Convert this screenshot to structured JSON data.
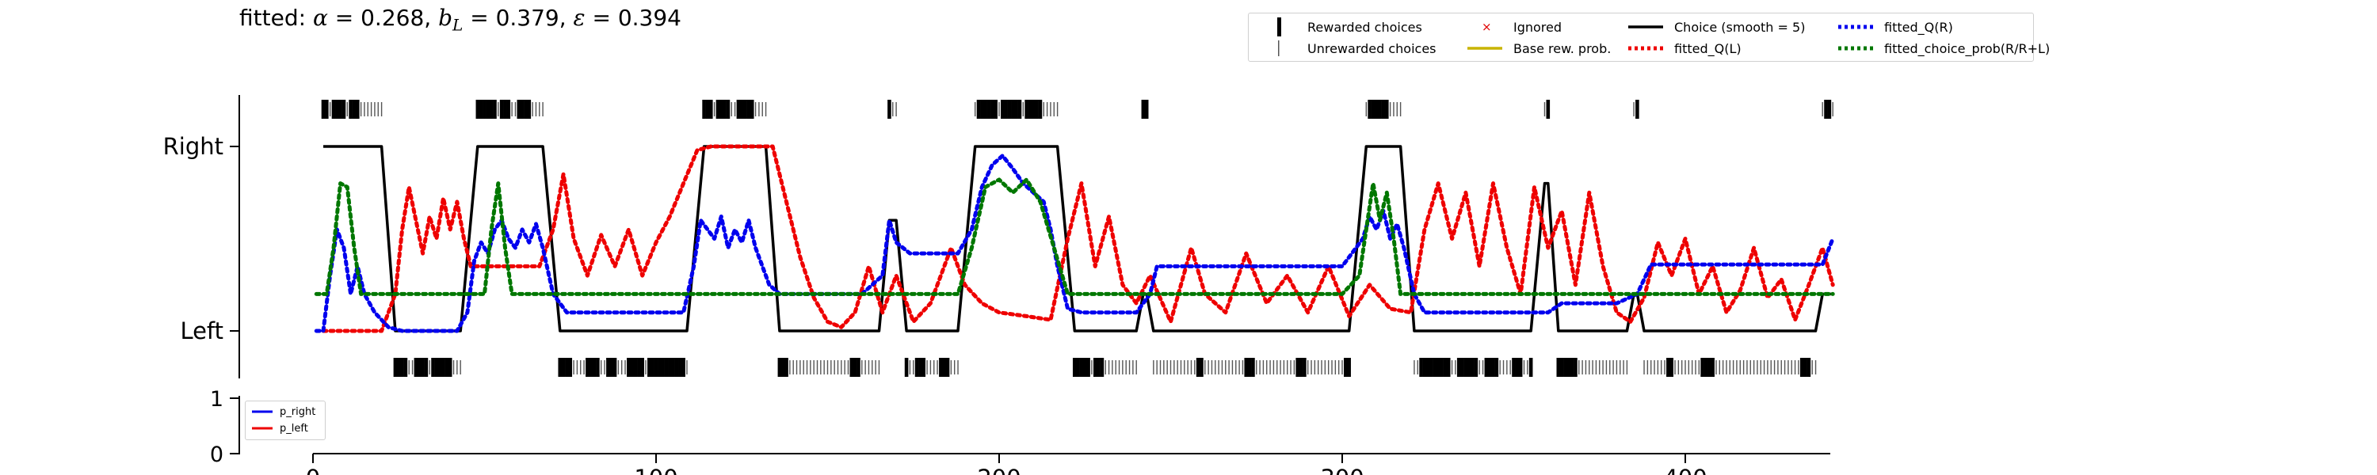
{
  "title": {
    "prefix": "fitted: ",
    "alpha_sym": "α",
    "alpha_text": " = 0.268, ",
    "b_sym": "b",
    "b_sub": "L",
    "b_text": " = 0.379, ",
    "eps_sym": "ε",
    "eps_text": " = 0.394"
  },
  "legend": [
    {
      "key": "rewarded",
      "label": "Rewarded choices",
      "kind": "bar-thick",
      "color": "#000000"
    },
    {
      "key": "ignored",
      "label": "Ignored",
      "kind": "x",
      "color": "#e00000"
    },
    {
      "key": "choice_smooth",
      "label": "Choice (smooth = 5)",
      "kind": "solid",
      "color": "#000000"
    },
    {
      "key": "fitted_qr",
      "label": "fitted_Q(R)",
      "kind": "dotted",
      "color": "#0000ee"
    },
    {
      "key": "unrewarded",
      "label": "Unrewarded choices",
      "kind": "bar-thin",
      "color": "#555555"
    },
    {
      "key": "base_rew",
      "label": "Base rew. prob.",
      "kind": "solid",
      "color": "#c8b400"
    },
    {
      "key": "fitted_ql",
      "label": "fitted_Q(L)",
      "kind": "dotted",
      "color": "#ee0000"
    },
    {
      "key": "fitted_prob",
      "label": "fitted_choice_prob(R/R+L)",
      "kind": "dotted",
      "color": "#007700"
    }
  ],
  "legend_prob": [
    {
      "key": "p_right",
      "label": "p_right",
      "color": "#0000ee"
    },
    {
      "key": "p_left",
      "label": "p_left",
      "color": "#ee0000"
    }
  ],
  "colors": {
    "qr": "#0000ee",
    "ql": "#ee0000",
    "prob": "#007700",
    "choice": "#000000",
    "p_right": "#0000ee",
    "p_left": "#ee0000",
    "axis": "#000000"
  },
  "chart_data": {
    "type": "line",
    "title": "fitted: α = 0.268, b_L = 0.379, ε = 0.394",
    "xlim": [
      0,
      443
    ],
    "x_ticks": [
      "0",
      "100",
      "200",
      "300",
      "400"
    ],
    "x_tick_values": [
      0,
      100,
      200,
      300,
      400
    ],
    "y_ticks": [
      "Left",
      "Right"
    ],
    "prob_ylim": [
      0,
      1
    ],
    "prob_y_ticks": [
      "0",
      "1"
    ],
    "choice_blocks": [
      {
        "side": "Right",
        "start": 3,
        "end": 20
      },
      {
        "side": "Left",
        "start": 24,
        "end": 43
      },
      {
        "side": "Right",
        "start": 48,
        "end": 67
      },
      {
        "side": "Left",
        "start": 72,
        "end": 109
      },
      {
        "side": "Right",
        "start": 114,
        "end": 132
      },
      {
        "side": "Left",
        "start": 136,
        "end": 165
      },
      {
        "side": "Right",
        "start": 168,
        "end": 170
      },
      {
        "side": "Left",
        "start": 173,
        "end": 188
      },
      {
        "side": "Right",
        "start": 193,
        "end": 217
      },
      {
        "side": "Left",
        "start": 222,
        "end": 240
      },
      {
        "side": "Right",
        "start": 242,
        "end": 243
      },
      {
        "side": "Left",
        "start": 245,
        "end": 302
      },
      {
        "side": "Right",
        "start": 307,
        "end": 317
      },
      {
        "side": "Left",
        "start": 321,
        "end": 355
      },
      {
        "side": "Right",
        "start": 359,
        "end": 360
      },
      {
        "side": "Left",
        "start": 363,
        "end": 383
      },
      {
        "side": "Right",
        "start": 385,
        "end": 386
      },
      {
        "side": "Left",
        "start": 388,
        "end": 438
      },
      {
        "side": "Right",
        "start": 440,
        "end": 443
      }
    ],
    "rewarded_right_segments": [
      [
        2,
        4
      ],
      [
        6,
        9
      ],
      [
        11,
        13
      ],
      [
        46,
        53
      ],
      [
        55,
        57
      ],
      [
        60,
        63
      ],
      [
        112,
        116
      ],
      [
        118,
        121
      ],
      [
        124,
        128
      ],
      [
        167,
        168
      ],
      [
        190,
        192
      ],
      [
        194,
        199
      ],
      [
        201,
        206
      ],
      [
        208,
        212
      ],
      [
        242,
        243
      ],
      [
        308,
        313
      ],
      [
        360,
        361
      ],
      [
        386,
        387
      ],
      [
        441,
        442
      ]
    ],
    "rewarded_left_segments": [
      [
        22,
        27
      ],
      [
        30,
        33
      ],
      [
        35,
        40
      ],
      [
        70,
        75
      ],
      [
        80,
        83
      ],
      [
        86,
        88
      ],
      [
        92,
        96
      ],
      [
        98,
        108
      ],
      [
        134,
        138
      ],
      [
        157,
        159
      ],
      [
        172,
        173
      ],
      [
        176,
        178
      ],
      [
        183,
        185
      ],
      [
        220,
        226
      ],
      [
        228,
        230
      ],
      [
        258,
        259
      ],
      [
        272,
        274
      ],
      [
        287,
        289
      ],
      [
        301,
        302
      ],
      [
        323,
        331
      ],
      [
        334,
        339
      ],
      [
        342,
        345
      ],
      [
        350,
        352
      ],
      [
        355,
        357
      ],
      [
        363,
        368
      ],
      [
        395,
        396
      ],
      [
        405,
        408
      ],
      [
        434,
        436
      ],
      [
        440,
        441
      ]
    ],
    "series": [
      {
        "name": "Choice (smooth = 5)",
        "key": "choice",
        "x": [
          3,
          20,
          24,
          43,
          48,
          67,
          72,
          109,
          114,
          132,
          136,
          165,
          168,
          170,
          173,
          188,
          193,
          217,
          222,
          240,
          242,
          243,
          245,
          302,
          307,
          317,
          321,
          355,
          359,
          360,
          363,
          383,
          385,
          386,
          388,
          438,
          440,
          443
        ],
        "y": [
          1,
          1,
          0,
          0,
          1,
          1,
          0,
          0,
          1,
          1,
          0,
          0,
          0.6,
          0.6,
          0,
          0,
          1,
          1,
          0,
          0,
          0.2,
          0.2,
          0,
          0,
          1,
          1,
          0,
          0,
          0.8,
          0.8,
          0,
          0,
          0.2,
          0.2,
          0,
          0,
          0.2,
          0.2
        ]
      },
      {
        "name": "fitted_Q(L)",
        "key": "ql",
        "x": [
          3,
          8,
          15,
          20,
          24,
          26,
          28,
          30,
          32,
          34,
          36,
          38,
          40,
          42,
          44,
          46,
          48,
          55,
          60,
          66,
          70,
          73,
          76,
          80,
          84,
          88,
          92,
          96,
          100,
          104,
          108,
          112,
          116,
          122,
          128,
          134,
          138,
          142,
          146,
          150,
          154,
          158,
          162,
          166,
          170,
          175,
          180,
          186,
          190,
          195,
          200,
          208,
          215,
          220,
          224,
          228,
          232,
          236,
          240,
          244,
          250,
          256,
          260,
          266,
          272,
          278,
          284,
          290,
          296,
          302,
          308,
          314,
          320,
          324,
          328,
          332,
          336,
          340,
          344,
          348,
          352,
          356,
          360,
          364,
          368,
          372,
          376,
          380,
          384,
          388,
          392,
          396,
          400,
          404,
          408,
          412,
          416,
          420,
          424,
          428,
          432,
          436,
          440,
          443
        ],
        "y": [
          0,
          0,
          0,
          0,
          0.2,
          0.55,
          0.78,
          0.6,
          0.42,
          0.62,
          0.5,
          0.72,
          0.55,
          0.7,
          0.5,
          0.35,
          0.35,
          0.35,
          0.35,
          0.35,
          0.55,
          0.85,
          0.5,
          0.3,
          0.52,
          0.35,
          0.55,
          0.3,
          0.48,
          0.62,
          0.8,
          0.98,
          1,
          1,
          1,
          1,
          0.7,
          0.4,
          0.18,
          0.05,
          0.02,
          0.1,
          0.35,
          0.1,
          0.3,
          0.05,
          0.15,
          0.45,
          0.25,
          0.15,
          0.1,
          0.08,
          0.06,
          0.5,
          0.8,
          0.35,
          0.62,
          0.25,
          0.15,
          0.3,
          0.05,
          0.45,
          0.2,
          0.1,
          0.42,
          0.15,
          0.3,
          0.1,
          0.35,
          0.08,
          0.25,
          0.12,
          0.1,
          0.55,
          0.8,
          0.5,
          0.75,
          0.35,
          0.8,
          0.45,
          0.2,
          0.78,
          0.45,
          0.65,
          0.25,
          0.75,
          0.35,
          0.1,
          0.05,
          0.18,
          0.48,
          0.3,
          0.5,
          0.2,
          0.35,
          0.1,
          0.22,
          0.45,
          0.18,
          0.28,
          0.06,
          0.25,
          0.45,
          0.25
        ]
      },
      {
        "name": "fitted_Q(R)",
        "key": "qr",
        "x": [
          1,
          3,
          5,
          7,
          9,
          11,
          13,
          15,
          18,
          22,
          26,
          30,
          34,
          38,
          42,
          45,
          47,
          49,
          51,
          53,
          55,
          57,
          59,
          61,
          63,
          65,
          67,
          70,
          74,
          80,
          90,
          100,
          108,
          111,
          113,
          115,
          117,
          119,
          121,
          123,
          125,
          127,
          129,
          131,
          133,
          136,
          140,
          150,
          160,
          166,
          168,
          170,
          174,
          180,
          188,
          192,
          195,
          198,
          201,
          204,
          207,
          210,
          213,
          215,
          217,
          220,
          224,
          232,
          240,
          244,
          246,
          260,
          280,
          300,
          306,
          308,
          310,
          312,
          314,
          316,
          318,
          321,
          324,
          330,
          340,
          350,
          356,
          360,
          364,
          368,
          372,
          380,
          386,
          390,
          400,
          420,
          440,
          443
        ],
        "y": [
          0,
          0,
          0.3,
          0.55,
          0.45,
          0.2,
          0.35,
          0.2,
          0.1,
          0.02,
          0,
          0,
          0,
          0,
          0,
          0.1,
          0.38,
          0.48,
          0.42,
          0.55,
          0.6,
          0.5,
          0.45,
          0.55,
          0.48,
          0.58,
          0.45,
          0.2,
          0.1,
          0.1,
          0.1,
          0.1,
          0.1,
          0.35,
          0.6,
          0.55,
          0.5,
          0.62,
          0.45,
          0.55,
          0.48,
          0.6,
          0.45,
          0.35,
          0.25,
          0.2,
          0.2,
          0.2,
          0.2,
          0.3,
          0.6,
          0.48,
          0.42,
          0.42,
          0.42,
          0.55,
          0.78,
          0.9,
          0.95,
          0.88,
          0.8,
          0.75,
          0.7,
          0.55,
          0.35,
          0.12,
          0.1,
          0.1,
          0.1,
          0.2,
          0.35,
          0.35,
          0.35,
          0.35,
          0.5,
          0.62,
          0.55,
          0.65,
          0.5,
          0.58,
          0.45,
          0.2,
          0.1,
          0.1,
          0.1,
          0.1,
          0.1,
          0.1,
          0.15,
          0.15,
          0.15,
          0.15,
          0.2,
          0.36,
          0.36,
          0.36,
          0.36,
          0.5
        ]
      },
      {
        "name": "fitted_choice_prob(R/R+L)",
        "key": "prob",
        "x": [
          1,
          4,
          6,
          8,
          10,
          12,
          14,
          16,
          20,
          40,
          48,
          50,
          52,
          54,
          56,
          58,
          60,
          70,
          110,
          112,
          114,
          116,
          120,
          124,
          128,
          132,
          136,
          180,
          188,
          192,
          196,
          200,
          204,
          208,
          212,
          216,
          220,
          224,
          230,
          300,
          305,
          307,
          309,
          311,
          313,
          315,
          317,
          320,
          324,
          443
        ],
        "y": [
          0.2,
          0.2,
          0.45,
          0.8,
          0.78,
          0.45,
          0.2,
          0.2,
          0.2,
          0.2,
          0.2,
          0.2,
          0.55,
          0.8,
          0.45,
          0.2,
          0.2,
          0.2,
          0.2,
          0.2,
          0.2,
          0.2,
          0.2,
          0.2,
          0.2,
          0.2,
          0.2,
          0.2,
          0.2,
          0.45,
          0.78,
          0.82,
          0.75,
          0.82,
          0.7,
          0.45,
          0.2,
          0.2,
          0.2,
          0.2,
          0.3,
          0.55,
          0.8,
          0.6,
          0.75,
          0.5,
          0.2,
          0.2,
          0.2,
          0.2
        ]
      }
    ]
  }
}
